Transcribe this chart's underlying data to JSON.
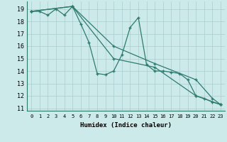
{
  "xlabel": "Humidex (Indice chaleur)",
  "background_color": "#cceaea",
  "grid_color": "#aacccc",
  "line_color": "#2e7b6e",
  "xlim": [
    -0.5,
    23.5
  ],
  "ylim": [
    10.8,
    19.6
  ],
  "yticks": [
    11,
    12,
    13,
    14,
    15,
    16,
    17,
    18,
    19
  ],
  "xticks": [
    0,
    1,
    2,
    3,
    4,
    5,
    6,
    7,
    8,
    9,
    10,
    11,
    12,
    13,
    14,
    15,
    16,
    17,
    18,
    19,
    20,
    21,
    22,
    23
  ],
  "line1_x": [
    0,
    1,
    2,
    3,
    4,
    5,
    6,
    7,
    8,
    9,
    10,
    11,
    12,
    13,
    14,
    15,
    16,
    17,
    18,
    19,
    20,
    21,
    22,
    23
  ],
  "line1_y": [
    18.8,
    18.8,
    18.5,
    19.0,
    18.5,
    19.2,
    17.8,
    16.3,
    13.8,
    13.7,
    14.0,
    15.3,
    17.5,
    18.3,
    14.5,
    14.0,
    14.0,
    13.9,
    13.8,
    13.3,
    12.0,
    11.8,
    11.5,
    11.3
  ],
  "line2_x": [
    0,
    5,
    10,
    15,
    20,
    23
  ],
  "line2_y": [
    18.8,
    19.2,
    15.0,
    14.3,
    12.0,
    11.3
  ],
  "line3_x": [
    0,
    5,
    10,
    15,
    20,
    22,
    23
  ],
  "line3_y": [
    18.8,
    19.2,
    16.0,
    14.6,
    13.3,
    11.8,
    11.3
  ]
}
